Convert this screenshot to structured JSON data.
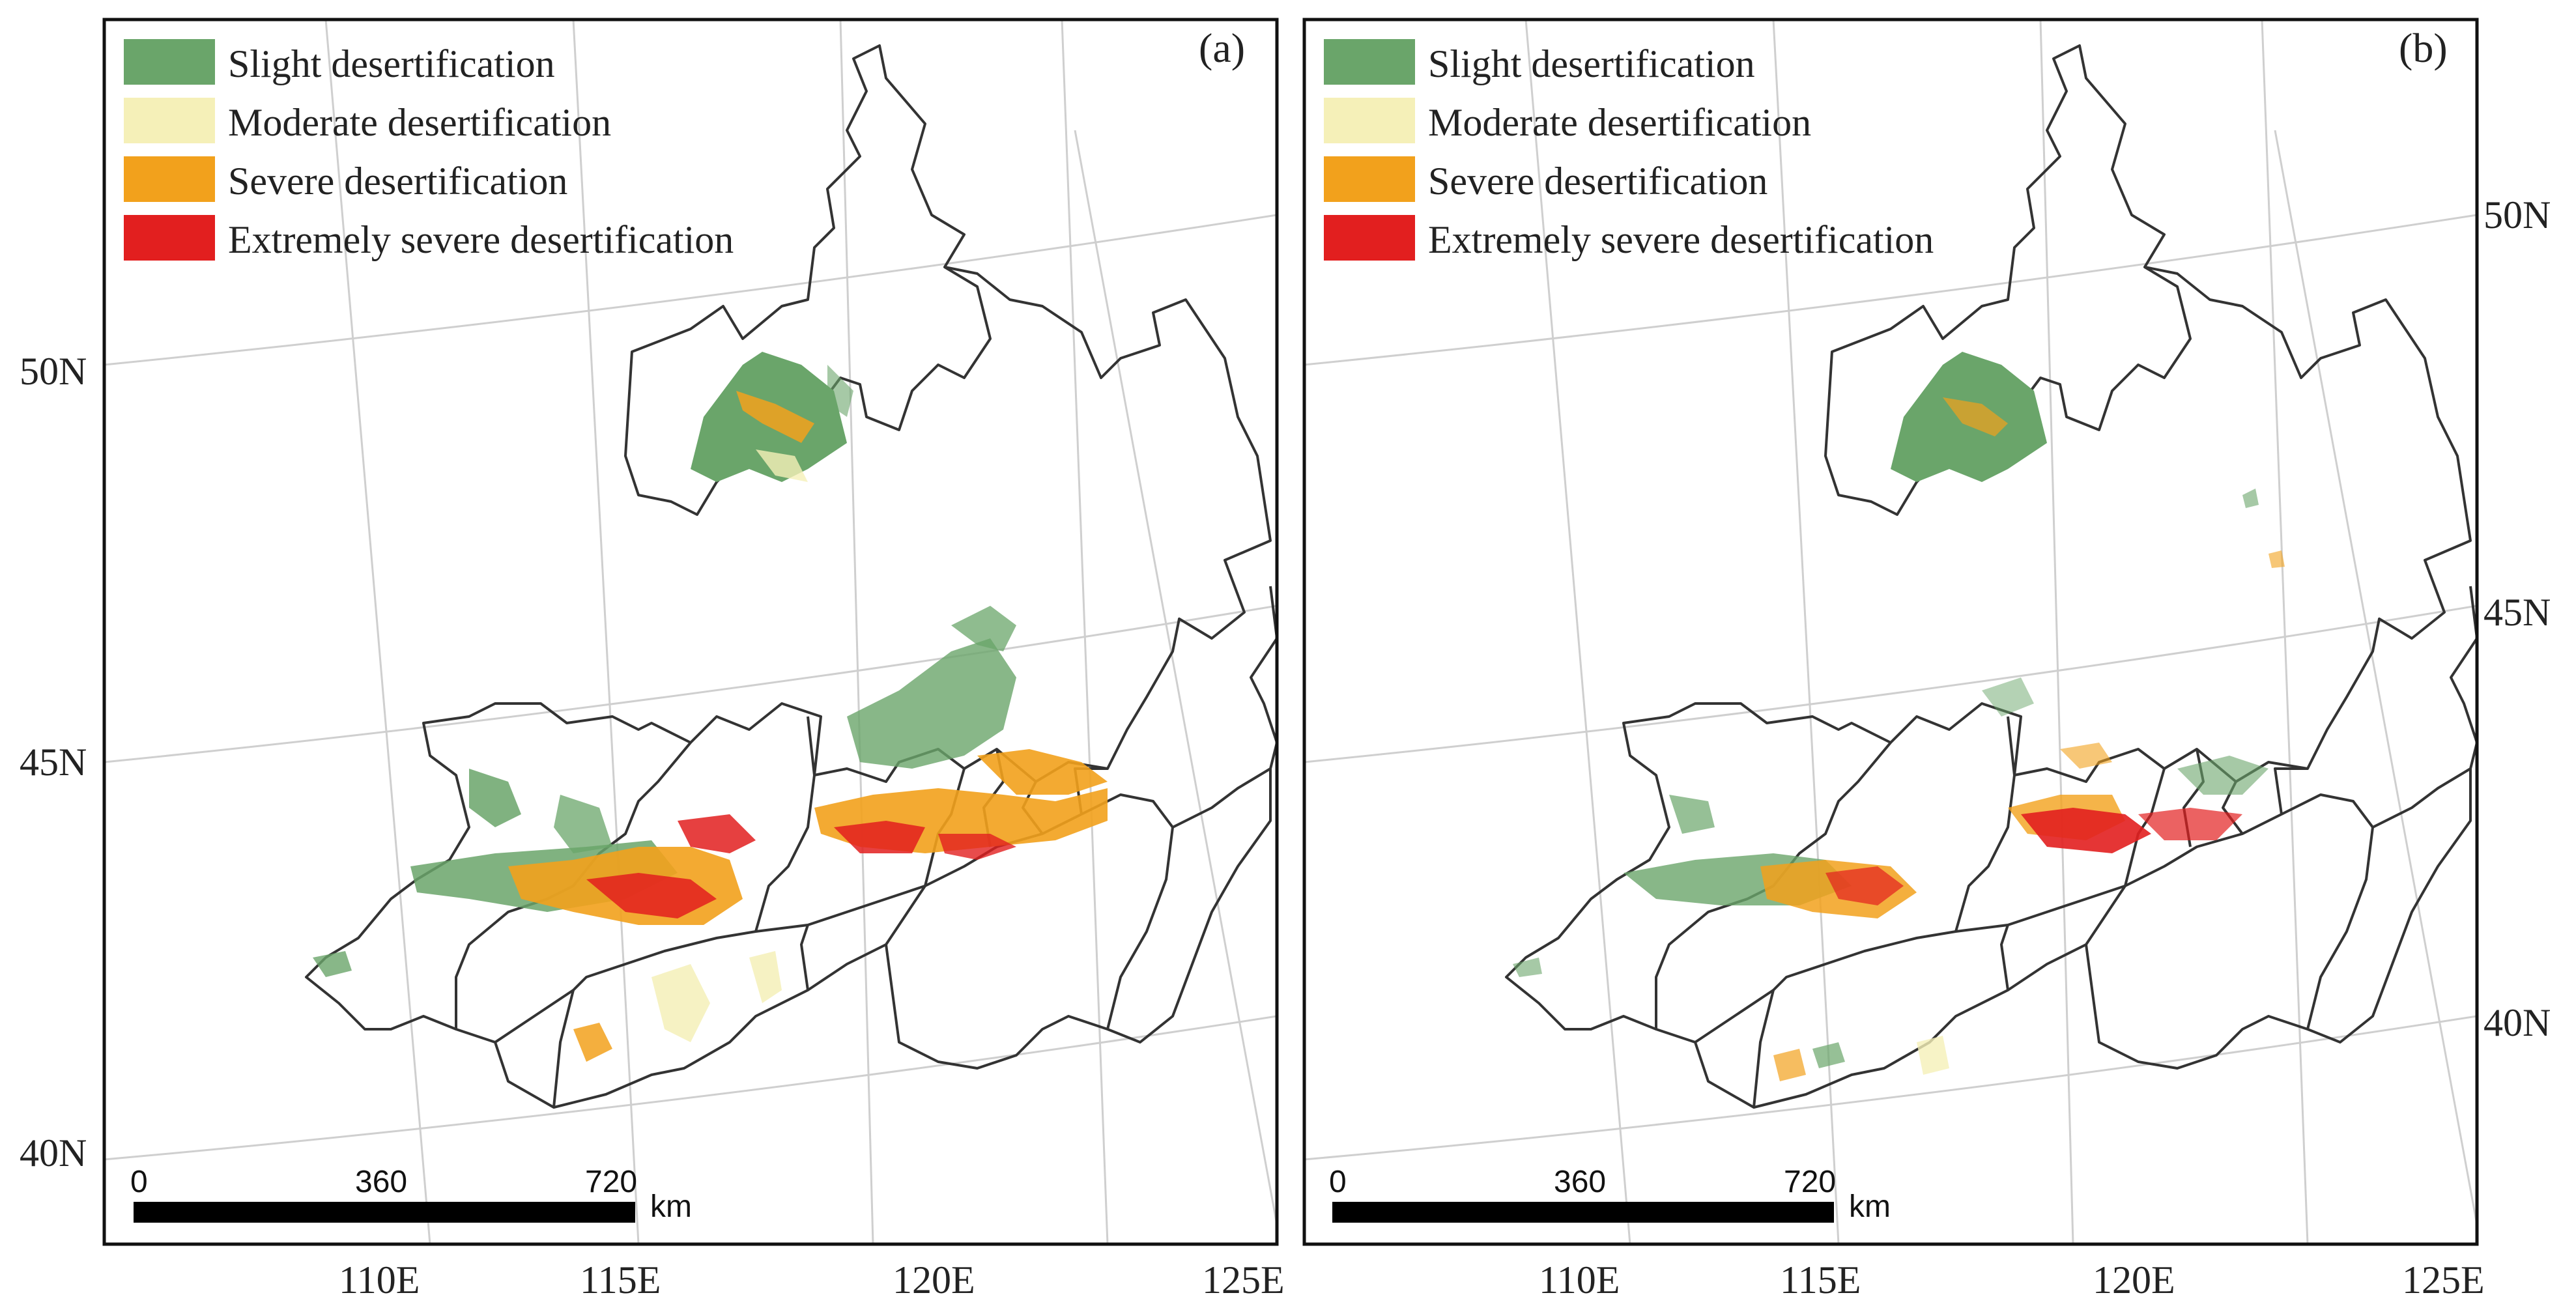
{
  "legend_items": [
    {
      "label": "Slight desertification",
      "color": "#6aa56a"
    },
    {
      "label": "Moderate desertification",
      "color": "#f5f0b8"
    },
    {
      "label": "Severe desertification",
      "color": "#f2a11c"
    },
    {
      "label": "Extremely severe desertification",
      "color": "#e21f1f"
    }
  ],
  "panels": [
    {
      "tag": "(a)",
      "lat_labels": [
        "50N",
        "45N",
        "40N"
      ],
      "lon_labels": [
        "110E",
        "115E",
        "120E",
        "125E"
      ],
      "scalebar": {
        "ticks": [
          "0",
          "360",
          "720"
        ],
        "unit": "km"
      }
    },
    {
      "tag": "(b)",
      "lat_labels": [
        "50N",
        "45N",
        "40N"
      ],
      "lon_labels": [
        "110E",
        "115E",
        "120E",
        "125E"
      ],
      "scalebar": {
        "ticks": [
          "0",
          "360",
          "720"
        ],
        "unit": "km"
      }
    }
  ]
}
